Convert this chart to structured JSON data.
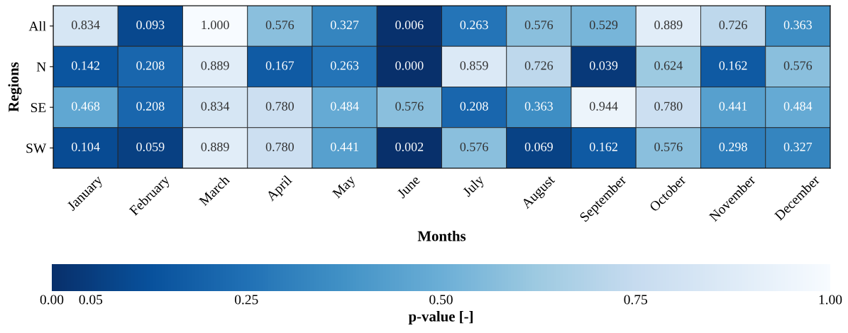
{
  "chart_data": {
    "type": "heatmap",
    "xlabel": "Months",
    "ylabel": "Regions",
    "clabel": "p-value [-]",
    "categories": [
      "January",
      "February",
      "March",
      "April",
      "May",
      "June",
      "July",
      "August",
      "September",
      "October",
      "November",
      "December"
    ],
    "y_categories": [
      "All",
      "N",
      "SE",
      "SW"
    ],
    "cells": [
      [
        0.834,
        0.093,
        1.0,
        0.576,
        0.327,
        0.006,
        0.263,
        0.576,
        0.529,
        0.889,
        0.726,
        0.363
      ],
      [
        0.142,
        0.208,
        0.889,
        0.167,
        0.263,
        0.0,
        0.859,
        0.726,
        0.039,
        0.624,
        0.162,
        0.576
      ],
      [
        0.468,
        0.208,
        0.834,
        0.78,
        0.484,
        0.576,
        0.208,
        0.363,
        0.944,
        0.78,
        0.441,
        0.484
      ],
      [
        0.104,
        0.059,
        0.889,
        0.78,
        0.441,
        0.002,
        0.576,
        0.069,
        0.162,
        0.576,
        0.298,
        0.327
      ]
    ],
    "cell_labels": [
      [
        "0.834",
        "0.093",
        "1.000",
        "0.576",
        "0.327",
        "0.006",
        "0.263",
        "0.576",
        "0.529",
        "0.889",
        "0.726",
        "0.363"
      ],
      [
        "0.142",
        "0.208",
        "0.889",
        "0.167",
        "0.263",
        "0.000",
        "0.859",
        "0.726",
        "0.039",
        "0.624",
        "0.162",
        "0.576"
      ],
      [
        "0.468",
        "0.208",
        "0.834",
        "0.780",
        "0.484",
        "0.576",
        "0.208",
        "0.363",
        "0.944",
        "0.780",
        "0.441",
        "0.484"
      ],
      [
        "0.104",
        "0.059",
        "0.889",
        "0.780",
        "0.441",
        "0.002",
        "0.576",
        "0.069",
        "0.162",
        "0.576",
        "0.298",
        "0.327"
      ]
    ],
    "clim": [
      0,
      1
    ],
    "cticks": [
      {
        "value": 0,
        "label": "0.00"
      },
      {
        "value": 0.05,
        "label": "0.05"
      },
      {
        "value": 0.25,
        "label": "0.25"
      },
      {
        "value": 0.5,
        "label": "0.50"
      },
      {
        "value": 0.75,
        "label": "0.75"
      },
      {
        "value": 1,
        "label": "1.00"
      }
    ]
  }
}
